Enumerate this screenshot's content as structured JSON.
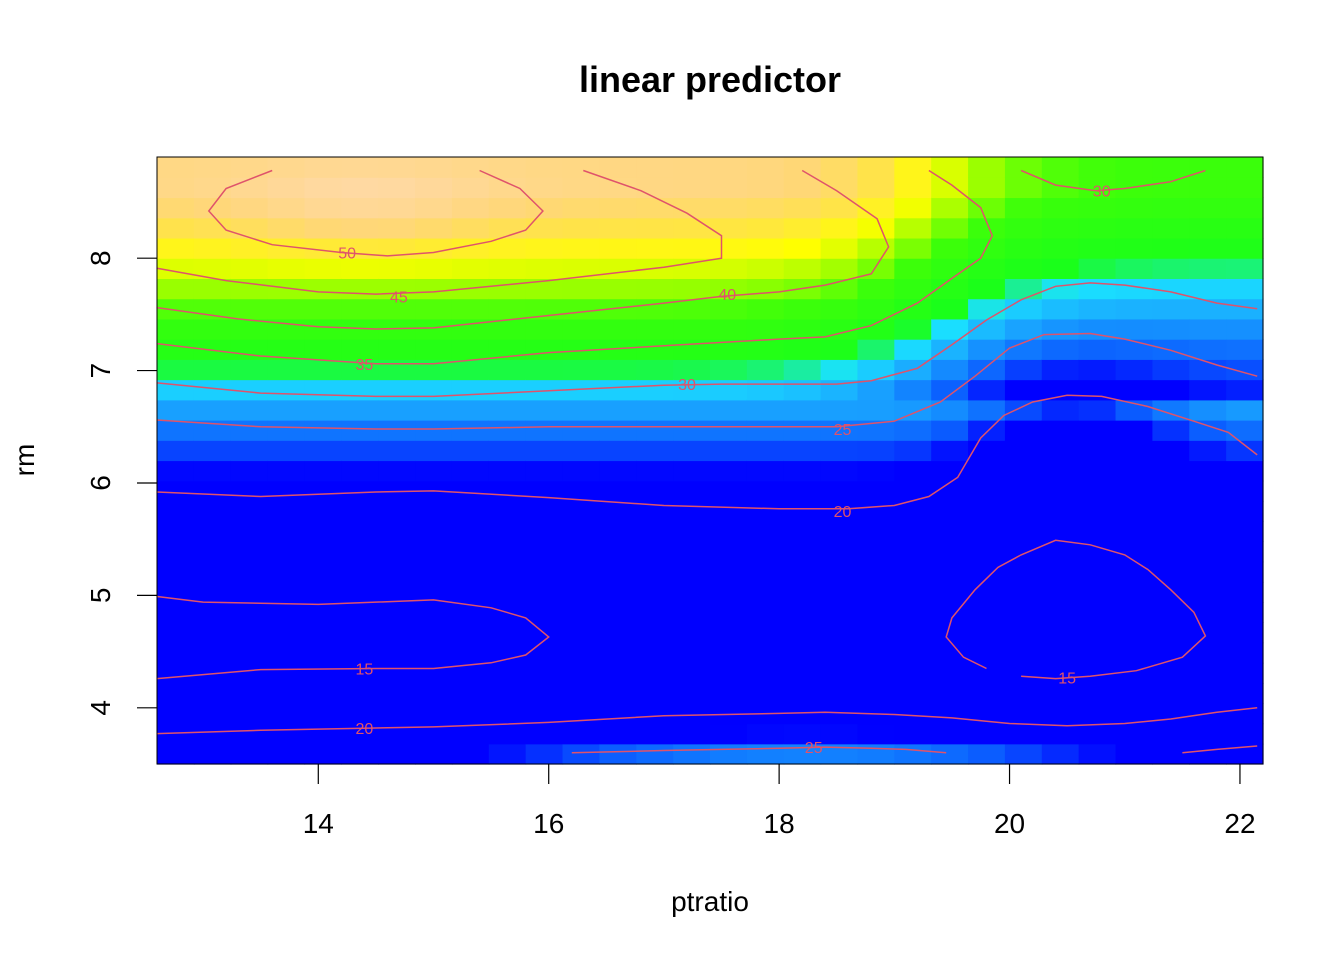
{
  "chart_data": {
    "type": "heatmap",
    "title": "linear predictor",
    "xlabel": "ptratio",
    "ylabel": "rm",
    "xlim": [
      12.6,
      22.2
    ],
    "ylim": [
      3.5,
      8.9
    ],
    "x_ticks": [
      14,
      16,
      18,
      20,
      22
    ],
    "y_ticks": [
      4,
      5,
      6,
      7,
      8
    ],
    "colormap": [
      "#0000ff",
      "#1a8cff",
      "#1ad9ff",
      "#1aff1a",
      "#99ff00",
      "#ffff00",
      "#ffd966",
      "#ffd9a6"
    ],
    "contour_color": "#df536b",
    "contour_levels": [
      {
        "level": 50,
        "label": "50"
      },
      {
        "level": 45,
        "label": "45"
      },
      {
        "level": 40,
        "label": "40"
      },
      {
        "level": 35,
        "label": "35"
      },
      {
        "level": 30,
        "label": "30"
      },
      {
        "level": 30,
        "label": "30"
      },
      {
        "level": 25,
        "label": "25"
      },
      {
        "level": 20,
        "label": "20"
      },
      {
        "level": 15,
        "label": "15"
      },
      {
        "level": 15,
        "label": "15"
      },
      {
        "level": 20,
        "label": "20"
      },
      {
        "level": 25,
        "label": "25"
      }
    ]
  }
}
